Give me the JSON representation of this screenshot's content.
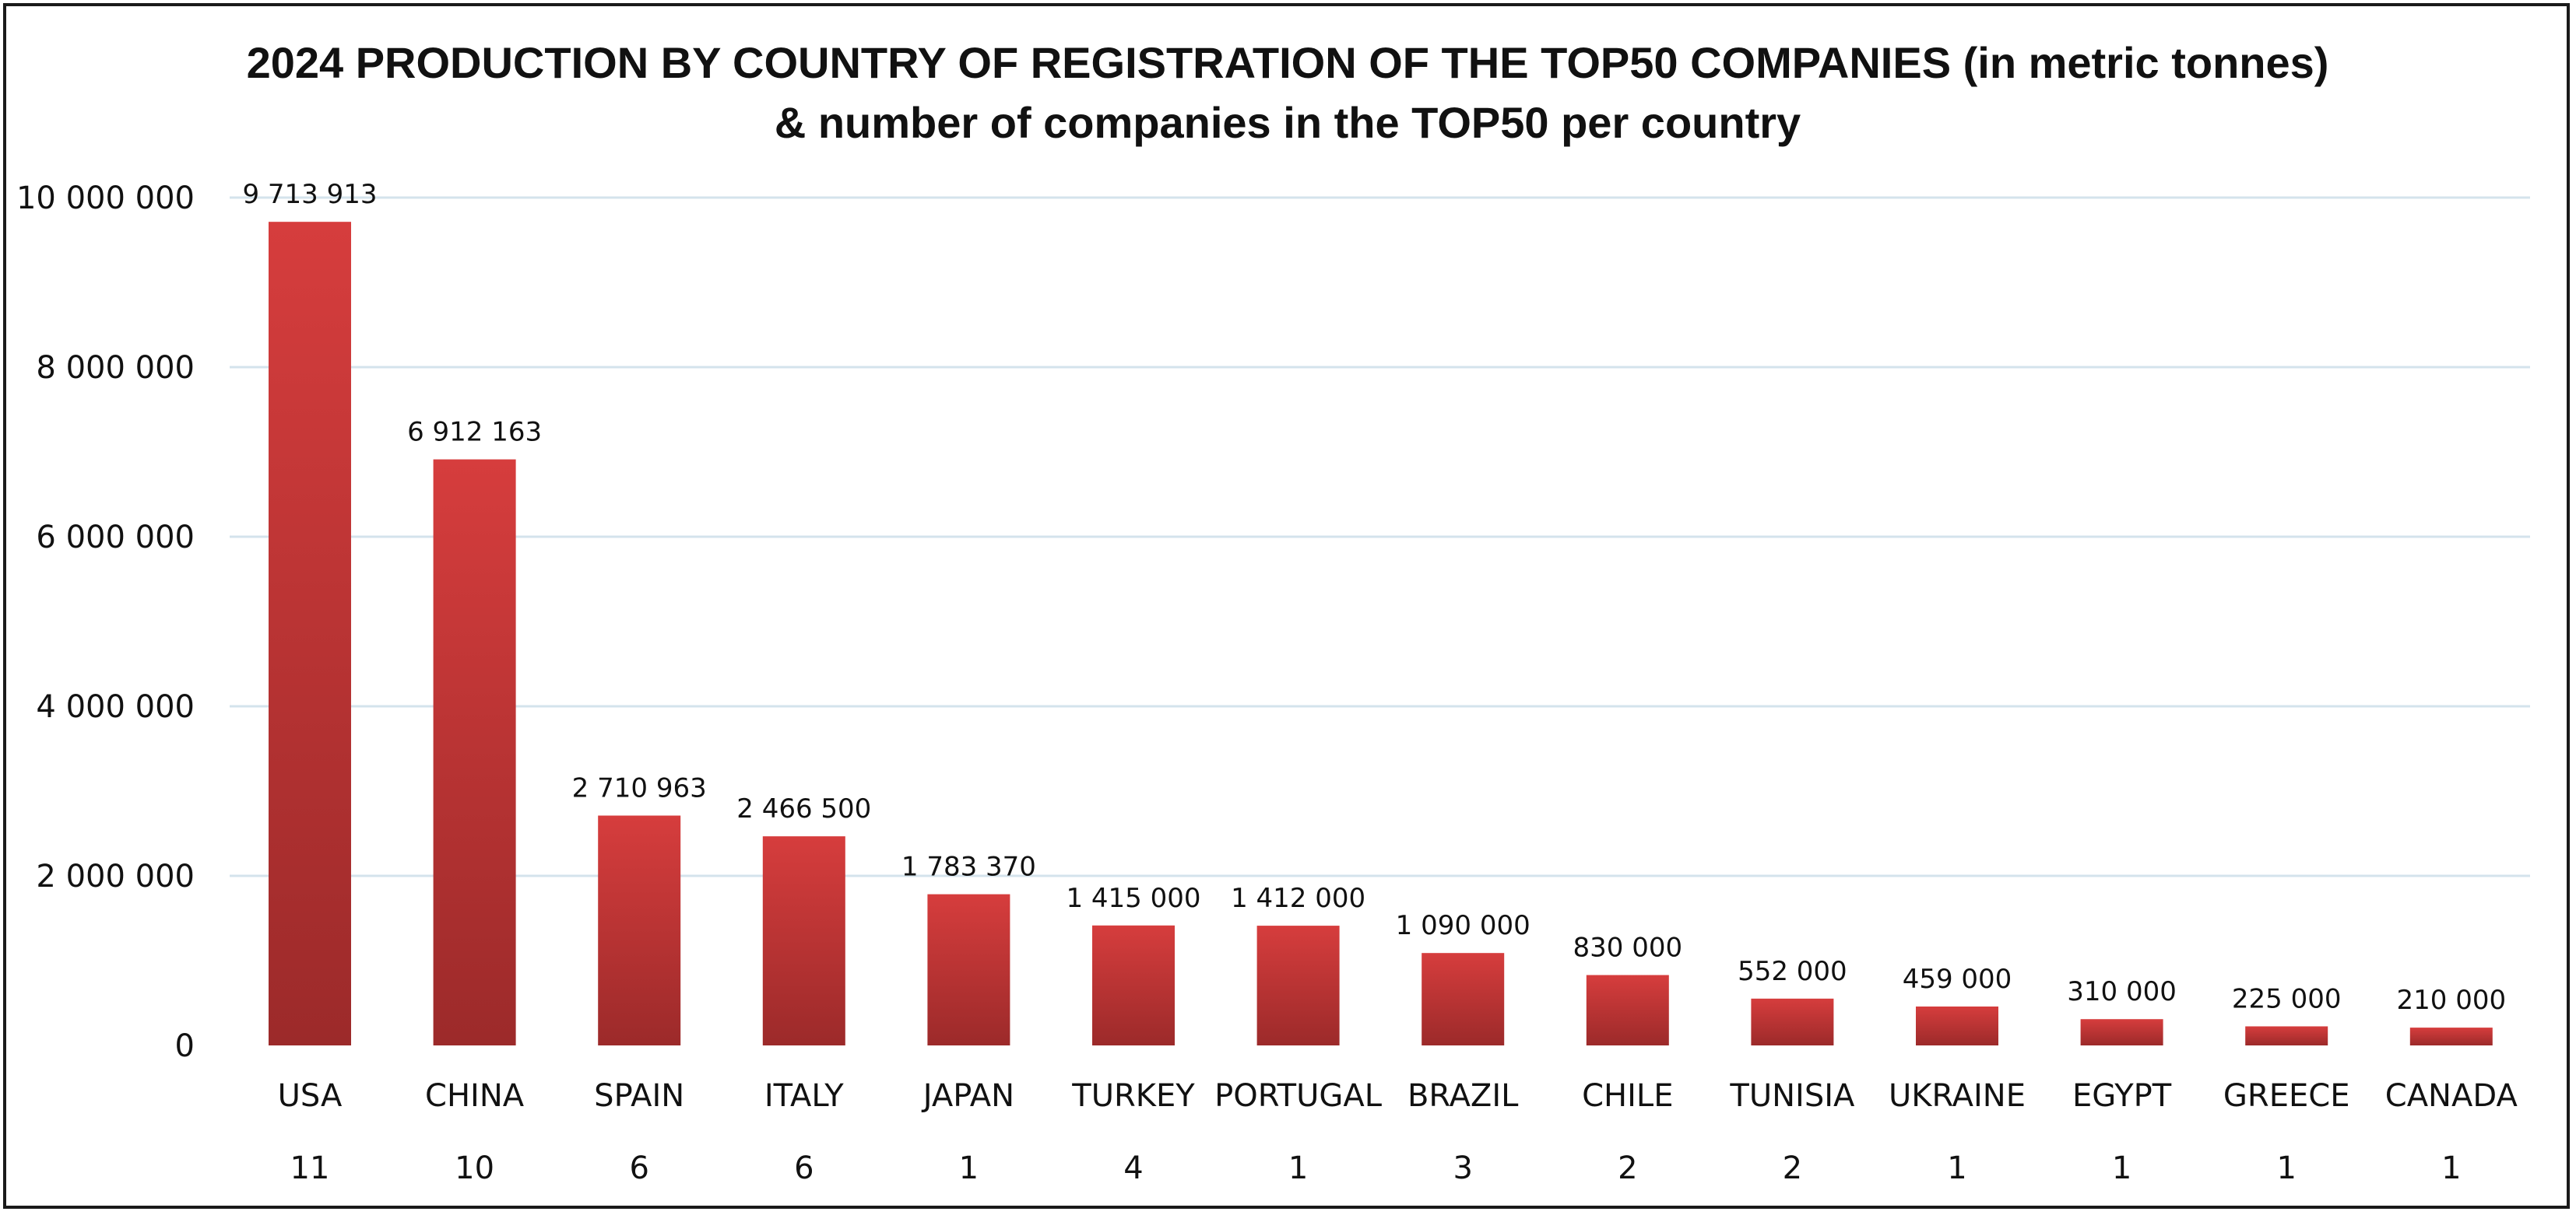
{
  "chart_data": {
    "type": "bar",
    "title": "2024 PRODUCTION BY COUNTRY OF REGISTRATION OF THE TOP50 COMPANIES  (in metric tonnes)",
    "subtitle": "& number of companies in the TOP50 per country",
    "categories": [
      "USA",
      "CHINA",
      "SPAIN",
      "ITALY",
      "JAPAN",
      "TURKEY",
      "PORTUGAL",
      "BRAZIL",
      "CHILE",
      "TUNISIA",
      "UKRAINE",
      "EGYPT",
      "GREECE",
      "CANADA"
    ],
    "values": [
      9713913,
      6912163,
      2710963,
      2466500,
      1783370,
      1415000,
      1412000,
      1090000,
      830000,
      552000,
      459000,
      310000,
      225000,
      210000
    ],
    "value_labels": [
      "9 713 913",
      "6 912 163",
      "2 710 963",
      "2 466 500",
      "1 783 370",
      "1 415 000",
      "1 412 000",
      "1 090 000",
      "830 000",
      "552 000",
      "459 000",
      "310 000",
      "225 000",
      "210 000"
    ],
    "companies_count": [
      "11",
      "10",
      "6",
      "6",
      "1",
      "4",
      "1",
      "3",
      "2",
      "2",
      "1",
      "1",
      "1",
      "1"
    ],
    "yticks": [
      0,
      2000000,
      4000000,
      6000000,
      8000000,
      10000000
    ],
    "ytick_labels": [
      "0",
      "2 000 000",
      "4 000 000",
      "6 000 000",
      "8 000 000",
      "10 000 000"
    ],
    "ylim": [
      0,
      10000000
    ],
    "grid": true,
    "legend": "none",
    "colors": {
      "bar_top": "#d63d3d",
      "bar_bottom": "#9c2a2a",
      "grid": "#d4e3ec"
    }
  }
}
